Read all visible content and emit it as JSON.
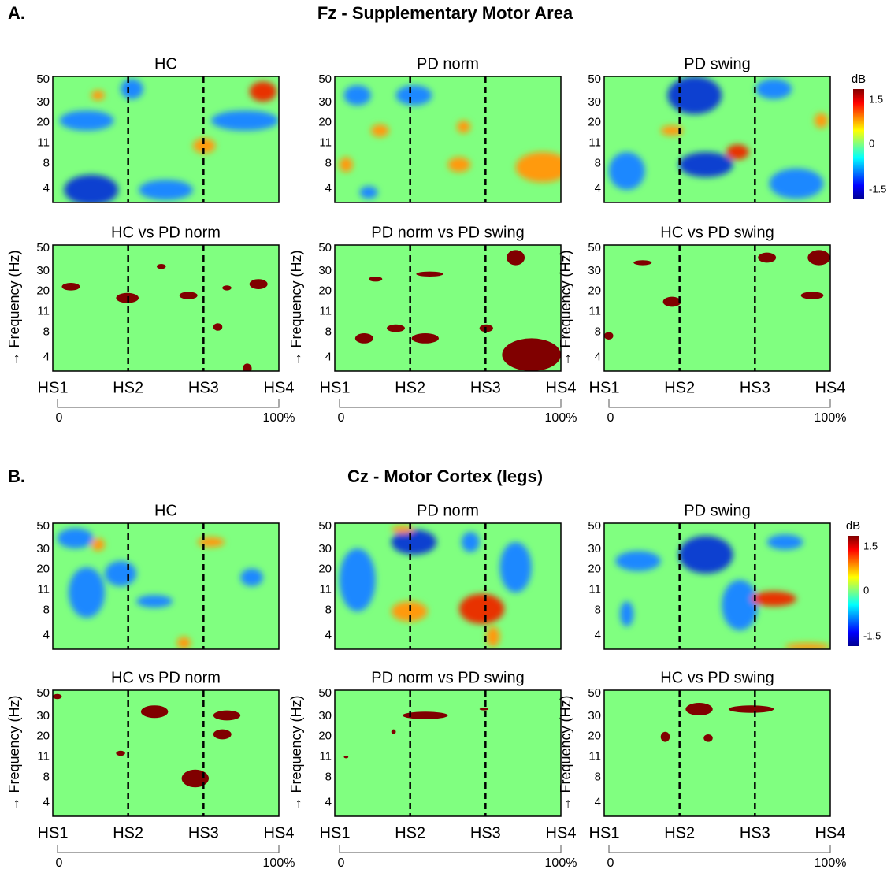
{
  "sections": [
    {
      "label": "A.",
      "title": "Fz - Supplementary Motor Area",
      "panels": [
        {
          "title": "HC"
        },
        {
          "title": "PD norm"
        },
        {
          "title": "PD swing"
        },
        {
          "title": "HC vs PD norm"
        },
        {
          "title": "PD norm vs PD swing"
        },
        {
          "title": "HC vs PD swing"
        }
      ],
      "colorbar": {
        "unit": "dB",
        "ticks": [
          "1.5",
          "0",
          "-1.5"
        ]
      }
    },
    {
      "label": "B.",
      "title": "Cz - Motor Cortex (legs)",
      "panels": [
        {
          "title": "HC"
        },
        {
          "title": "PD norm"
        },
        {
          "title": "PD swing"
        },
        {
          "title": "HC vs PD norm"
        },
        {
          "title": "PD norm vs PD swing"
        },
        {
          "title": "HC vs PD swing"
        }
      ],
      "colorbar": {
        "unit": "dB",
        "ticks": [
          "1.5",
          "0",
          "-1.5"
        ]
      }
    }
  ],
  "y_axis": {
    "label": "→ Frequency (Hz)",
    "ticks": [
      "50",
      "30",
      "20",
      "11",
      "8",
      "4"
    ]
  },
  "x_axis": {
    "ticks": [
      "HS1",
      "HS2",
      "HS3",
      "HS4"
    ],
    "range_labels": [
      "0",
      "100%"
    ]
  }
}
